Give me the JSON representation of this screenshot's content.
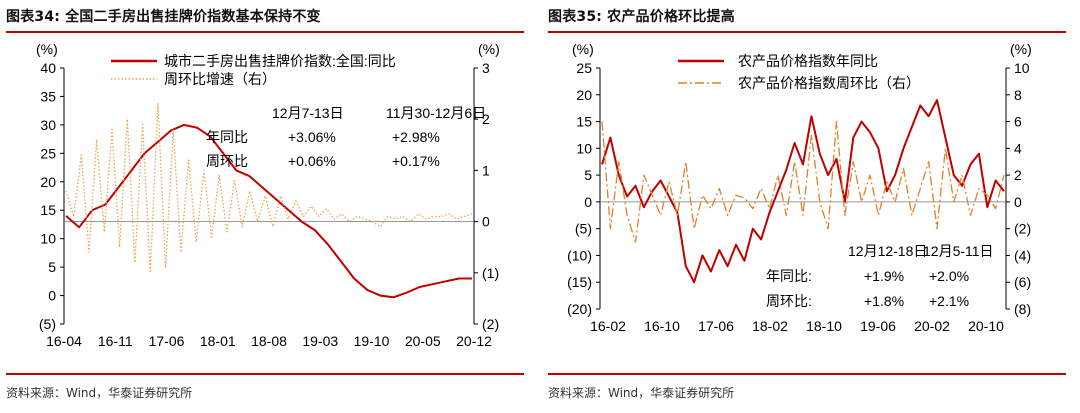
{
  "panels": [
    {
      "title": "图表34:  全国二手房出售挂牌价指数基本保持不变",
      "source": "资料来源：Wind，华泰证券研究所",
      "unit_left": "(%)",
      "unit_right": "(%)",
      "table": {
        "col1": "12月7-13日",
        "col2": "11月30-12月6日",
        "rows": [
          {
            "label": "年同比",
            "v1": "+3.06%",
            "v2": "+2.98%"
          },
          {
            "label": "周环比",
            "v1": "+0.06%",
            "v2": "+0.17%"
          }
        ]
      }
    },
    {
      "title": "图表35:  农产品价格环比提高",
      "source": "资料来源：Wind，华泰证券研究所",
      "unit_left": "(%)",
      "unit_right": "(%)",
      "table": {
        "col1": "12月12-18日",
        "col2": "12月5-11日",
        "rows": [
          {
            "label": "年同比:",
            "v1": "+1.9%",
            "v2": "+2.0%"
          },
          {
            "label": "周环比:",
            "v1": "+1.8%",
            "v2": "+2.1%"
          }
        ]
      }
    }
  ],
  "chart_data": [
    {
      "type": "line",
      "title": "图表34:  全国二手房出售挂牌价指数基本保持不变",
      "x_tick_labels": [
        "16-04",
        "16-11",
        "17-06",
        "18-01",
        "18-08",
        "19-03",
        "19-10",
        "20-05",
        "20-12"
      ],
      "y_left": {
        "ticks": [
          40,
          35,
          30,
          25,
          20,
          15,
          10,
          5,
          0,
          -5
        ],
        "tick_labels": [
          "40",
          "35",
          "30",
          "25",
          "20",
          "15",
          "10",
          "5",
          "0",
          "(5)"
        ],
        "ylim": [
          -5,
          40
        ]
      },
      "y_right": {
        "ticks": [
          3,
          2,
          1,
          0,
          -1,
          -2
        ],
        "tick_labels": [
          "3",
          "2",
          "1",
          "0",
          "(1)",
          "(2)"
        ],
        "ylim": [
          -2,
          3
        ]
      },
      "legend_position": "top",
      "series": [
        {
          "name": "城市二手房出售挂牌价指数:全国:同比",
          "axis": "left",
          "style": "solid",
          "color": "#c00000",
          "values": [
            14,
            12,
            15,
            16,
            19,
            22,
            25,
            27,
            29,
            30,
            29.5,
            28,
            25,
            22,
            21,
            19,
            17,
            15,
            13,
            11.5,
            9,
            6,
            3,
            1,
            0,
            -0.3,
            0.5,
            1.5,
            2,
            2.5,
            3,
            3
          ]
        },
        {
          "name": "周环比增速（右）",
          "axis": "right",
          "style": "dotted",
          "color": "#f0a050",
          "values": [
            0.6,
            0.1,
            1.3,
            -0.6,
            1.6,
            -0.2,
            1.8,
            -0.5,
            2.0,
            -0.8,
            1.9,
            -1.0,
            2.3,
            -0.9,
            1.8,
            -0.6,
            1.2,
            -0.4,
            1.0,
            -0.3,
            0.9,
            -0.2,
            0.8,
            -0.1,
            0.6,
            0.0,
            0.5,
            -0.1,
            0.5,
            0.05,
            0.4,
            0.1,
            0.3,
            0.1,
            0.25,
            0.05,
            0.15,
            0.0,
            0.1,
            0.05,
            0.0,
            -0.1,
            0.1,
            0.05,
            0.1,
            0.0,
            0.15,
            0.05,
            0.1,
            0.1,
            0.15,
            0.05,
            0.1,
            0.15
          ]
        }
      ]
    },
    {
      "type": "line",
      "title": "图表35:  农产品价格环比提高",
      "x_tick_labels": [
        "16-02",
        "16-10",
        "17-06",
        "18-02",
        "18-10",
        "19-06",
        "20-02",
        "20-10"
      ],
      "y_left": {
        "ticks": [
          25,
          20,
          15,
          10,
          5,
          0,
          -5,
          -10,
          -15,
          -20
        ],
        "tick_labels": [
          "25",
          "20",
          "15",
          "10",
          "5",
          "0",
          "(5)",
          "(10)",
          "(15)",
          "(20)"
        ],
        "ylim": [
          -20,
          25
        ]
      },
      "y_right": {
        "ticks": [
          10,
          8,
          6,
          4,
          2,
          0,
          -2,
          -4,
          -6,
          -8
        ],
        "tick_labels": [
          "10",
          "8",
          "6",
          "4",
          "2",
          "0",
          "(2)",
          "(4)",
          "(6)",
          "(8)"
        ],
        "ylim": [
          -8,
          10
        ]
      },
      "legend_position": "top",
      "series": [
        {
          "name": "农产品价格指数年同比",
          "axis": "left",
          "style": "solid",
          "color": "#c00000",
          "values": [
            7,
            12,
            5,
            1,
            3,
            -1,
            2,
            4,
            1,
            -2,
            -12,
            -15,
            -10,
            -13,
            -9,
            -12,
            -8,
            -11,
            -5,
            -7,
            -2,
            2,
            6,
            11,
            7,
            16,
            9,
            5,
            8,
            0,
            12,
            15,
            13,
            10,
            2,
            5,
            10,
            14,
            18,
            16,
            19,
            12,
            5,
            3,
            7,
            9,
            -1,
            4,
            2
          ]
        },
        {
          "name": "农产品价格指数周环比（右）",
          "axis": "right",
          "style": "dashdot",
          "color": "#e0802a",
          "values": [
            6,
            -2,
            3,
            -1,
            -3,
            2,
            0.5,
            -1,
            1.5,
            -1,
            3,
            -2,
            0.5,
            -0.5,
            1,
            -1,
            0.5,
            0.3,
            -0.5,
            1,
            -0.5,
            2,
            -1,
            3,
            -1,
            5,
            0,
            -2,
            6,
            -1,
            3,
            0,
            2,
            -1,
            1.5,
            0,
            2.5,
            -1,
            1,
            3,
            -2,
            4,
            0,
            2,
            -1,
            1,
            0.5,
            -0.5,
            2
          ]
        }
      ]
    }
  ]
}
